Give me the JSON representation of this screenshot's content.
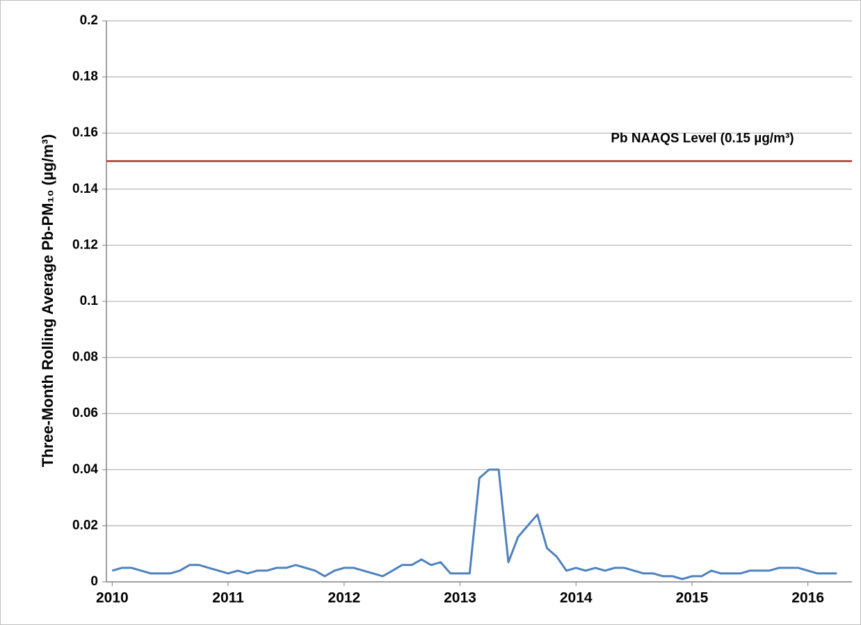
{
  "chart_data": {
    "type": "line",
    "y_label": "Three-Month Rolling Average Pb-PM₁₀ (µg/m³)",
    "x": [
      2010,
      2010.083,
      2010.167,
      2010.25,
      2010.333,
      2010.417,
      2010.5,
      2010.583,
      2010.667,
      2010.75,
      2010.833,
      2010.917,
      2011,
      2011.083,
      2011.167,
      2011.25,
      2011.333,
      2011.417,
      2011.5,
      2011.583,
      2011.667,
      2011.75,
      2011.833,
      2011.917,
      2012,
      2012.083,
      2012.167,
      2012.25,
      2012.333,
      2012.417,
      2012.5,
      2012.583,
      2012.667,
      2012.75,
      2012.833,
      2012.917,
      2013,
      2013.083,
      2013.167,
      2013.25,
      2013.333,
      2013.417,
      2013.5,
      2013.583,
      2013.667,
      2013.75,
      2013.833,
      2013.917,
      2014,
      2014.083,
      2014.167,
      2014.25,
      2014.333,
      2014.417,
      2014.5,
      2014.583,
      2014.667,
      2014.75,
      2014.833,
      2014.917,
      2015,
      2015.083,
      2015.167,
      2015.25,
      2015.333,
      2015.417,
      2015.5,
      2015.583,
      2015.667,
      2015.75,
      2015.833,
      2015.917,
      2016,
      2016.083,
      2016.167,
      2016.25
    ],
    "series": [
      {
        "color": "#4f81bd",
        "values": [
          0.004,
          0.005,
          0.005,
          0.004,
          0.003,
          0.003,
          0.003,
          0.004,
          0.006,
          0.006,
          0.005,
          0.004,
          0.003,
          0.004,
          0.003,
          0.004,
          0.004,
          0.005,
          0.005,
          0.006,
          0.005,
          0.004,
          0.002,
          0.004,
          0.005,
          0.005,
          0.004,
          0.003,
          0.002,
          0.004,
          0.006,
          0.006,
          0.008,
          0.006,
          0.007,
          0.003,
          0.003,
          0.003,
          0.037,
          0.04,
          0.04,
          0.007,
          0.016,
          0.02,
          0.024,
          0.012,
          0.009,
          0.004,
          0.005,
          0.004,
          0.005,
          0.004,
          0.005,
          0.005,
          0.004,
          0.003,
          0.003,
          0.002,
          0.002,
          0.001,
          0.002,
          0.002,
          0.004,
          0.003,
          0.003,
          0.003,
          0.004,
          0.004,
          0.004,
          0.005,
          0.005,
          0.005,
          0.004,
          0.003,
          0.003,
          0.003
        ]
      }
    ],
    "reference_line": {
      "value": 0.15,
      "color": "#c0504d",
      "label": "Pb NAAQS Level (0.15 µg/m³)"
    },
    "xlim": [
      2009.95,
      2016.38
    ],
    "xticks": [
      2010,
      2011,
      2012,
      2013,
      2014,
      2015,
      2016
    ],
    "ylim": [
      0,
      0.2
    ],
    "yticks": [
      0,
      0.02,
      0.04,
      0.06,
      0.08,
      0.1,
      0.12,
      0.14,
      0.16,
      0.18,
      0.2
    ],
    "grid": true
  }
}
